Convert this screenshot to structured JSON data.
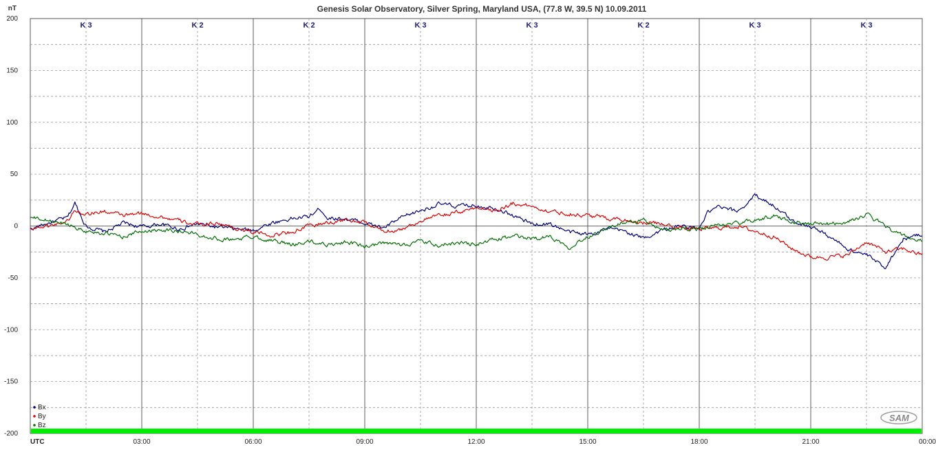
{
  "chart_data": {
    "type": "line",
    "title": "Genesis Solar Observatory, Silver Spring, Maryland USA, (77.8 W, 39.5 N)  10.09.2011",
    "ylabel": "nT",
    "xlabel": "UTC",
    "ylim": [
      -200,
      200
    ],
    "xlim": [
      0,
      24
    ],
    "yticks": [
      200,
      150,
      100,
      50,
      0,
      -50,
      -100,
      -150,
      -200
    ],
    "xticks": [
      {
        "x": 3,
        "label": "03:00"
      },
      {
        "x": 6,
        "label": "06:00"
      },
      {
        "x": 9,
        "label": "09:00"
      },
      {
        "x": 12,
        "label": "12:00"
      },
      {
        "x": 15,
        "label": "15:00"
      },
      {
        "x": 18,
        "label": "18:00"
      },
      {
        "x": 21,
        "label": "21:00"
      },
      {
        "x": 24,
        "label": "00:00"
      }
    ],
    "k_index": [
      {
        "x": 1.5,
        "label": "K 3"
      },
      {
        "x": 4.5,
        "label": "K 2"
      },
      {
        "x": 7.5,
        "label": "K 2"
      },
      {
        "x": 10.5,
        "label": "K 3"
      },
      {
        "x": 13.5,
        "label": "K 3"
      },
      {
        "x": 16.5,
        "label": "K 2"
      },
      {
        "x": 19.5,
        "label": "K 3"
      },
      {
        "x": 22.5,
        "label": "K 3"
      }
    ],
    "grid": true,
    "legend_position": "bottom-left",
    "colors": {
      "Bx": "#000080",
      "By": "#e00000",
      "Bz": "#007000",
      "status_bar": "#00ee00"
    },
    "series": [
      {
        "name": "Bx",
        "x": [
          0,
          0.5,
          1,
          1.2,
          1.5,
          2,
          2.5,
          3,
          3.5,
          4,
          4.5,
          5,
          5.5,
          6,
          6.5,
          7,
          7.5,
          7.8,
          8,
          8.5,
          9,
          9.5,
          10,
          10.5,
          11,
          11.5,
          12,
          12.5,
          13,
          13.5,
          14,
          14.5,
          15,
          15.5,
          16,
          16.5,
          17,
          17.5,
          18,
          18.2,
          18.5,
          19,
          19.3,
          19.5,
          20,
          20.5,
          21,
          21.5,
          22,
          22.5,
          23,
          23.5,
          24
        ],
        "values": [
          -3,
          3,
          8,
          22,
          0,
          -6,
          3,
          -1,
          2,
          -3,
          2,
          -1,
          -3,
          -4,
          3,
          7,
          9,
          17,
          8,
          7,
          3,
          -2,
          8,
          15,
          21,
          19,
          20,
          18,
          10,
          2,
          2,
          -6,
          -8,
          -3,
          -5,
          -12,
          -4,
          0,
          -3,
          12,
          18,
          14,
          22,
          30,
          20,
          5,
          0,
          -10,
          -22,
          -28,
          -40,
          -12,
          -8
        ]
      },
      {
        "name": "By",
        "x": [
          0,
          0.5,
          1,
          1.2,
          1.5,
          2,
          2.5,
          3,
          3.5,
          4,
          4.5,
          5,
          5.5,
          6,
          6.5,
          7,
          7.5,
          8,
          8.5,
          9,
          9.5,
          10,
          10.5,
          11,
          11.5,
          12,
          12.5,
          13,
          13.5,
          14,
          14.5,
          15,
          15.5,
          16,
          16.5,
          17,
          17.5,
          18,
          18.5,
          19,
          19.5,
          20,
          20.5,
          21,
          21.5,
          22,
          22.5,
          23,
          23.5,
          24
        ],
        "values": [
          -2,
          0,
          5,
          15,
          12,
          14,
          10,
          12,
          9,
          5,
          1,
          3,
          -2,
          -6,
          -9,
          -6,
          0,
          3,
          6,
          3,
          -5,
          -3,
          5,
          10,
          13,
          18,
          15,
          22,
          19,
          14,
          12,
          10,
          8,
          6,
          3,
          2,
          -2,
          -3,
          -2,
          0,
          -5,
          -10,
          -22,
          -30,
          -30,
          -28,
          -15,
          -25,
          -22,
          -28
        ]
      },
      {
        "name": "Bz",
        "x": [
          0,
          0.5,
          1,
          1.5,
          2,
          2.5,
          3,
          3.5,
          4,
          4.5,
          5,
          5.5,
          6,
          6.5,
          7,
          7.5,
          8,
          8.5,
          9,
          9.5,
          10,
          10.5,
          11,
          11.5,
          12,
          12.5,
          13,
          13.5,
          14,
          14.5,
          15,
          15.5,
          16,
          16.5,
          17,
          17.5,
          18,
          18.5,
          19,
          19.5,
          20,
          20.5,
          21,
          21.5,
          22,
          22.5,
          23,
          23.5,
          24
        ],
        "values": [
          8,
          5,
          2,
          -5,
          -7,
          -10,
          -5,
          -3,
          -5,
          -8,
          -12,
          -13,
          -10,
          -14,
          -18,
          -15,
          -18,
          -15,
          -20,
          -17,
          -18,
          -15,
          -19,
          -16,
          -18,
          -13,
          -10,
          -12,
          -10,
          -20,
          -10,
          -2,
          3,
          5,
          -5,
          -2,
          -3,
          0,
          3,
          5,
          10,
          5,
          2,
          2,
          4,
          11,
          0,
          -10,
          -15
        ]
      }
    ]
  },
  "legend": [
    {
      "name": "Bx",
      "color": "#000080"
    },
    {
      "name": "By",
      "color": "#e00000"
    },
    {
      "name": "Bz",
      "color": "#007000"
    }
  ],
  "logo_text": "SAM"
}
